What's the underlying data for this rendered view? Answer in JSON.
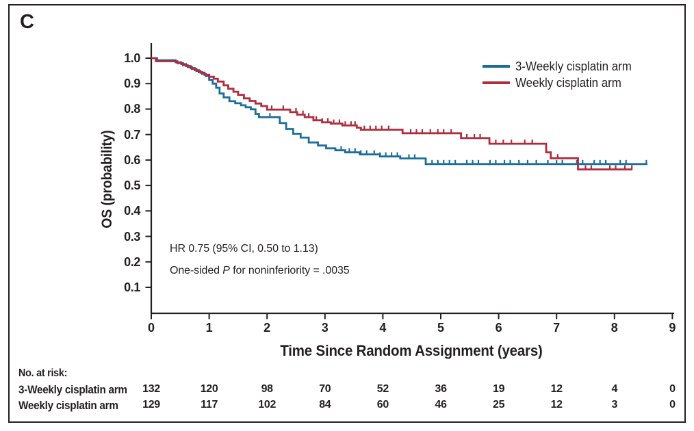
{
  "panel_label": "C",
  "colors": {
    "axis": "#231f20",
    "text": "#231f20",
    "blue": "#1a6e9b",
    "red": "#af2c3e"
  },
  "legend": [
    {
      "label": "3-Weekly cisplatin arm"
    },
    {
      "label": "Weekly cisplatin arm"
    }
  ],
  "annotation": {
    "line1": "HR 0.75 (95% CI, 0.50 to 1.13)",
    "line2_prefix": "One-sided ",
    "line2_italic": "P",
    "line2_suffix": " for noninferiority = .0035"
  },
  "chart_data": {
    "type": "line",
    "subtype": "kaplan-meier-step",
    "title": "",
    "xlabel": "Time Since Random Assignment (years)",
    "ylabel": "OS (probability)",
    "xlim": [
      0,
      9
    ],
    "ylim": [
      0,
      1.05
    ],
    "x_ticks": [
      0,
      1,
      2,
      3,
      4,
      5,
      6,
      7,
      8,
      9
    ],
    "y_ticks": [
      0.1,
      0.2,
      0.3,
      0.4,
      0.5,
      0.6,
      0.7,
      0.8,
      0.9,
      1.0
    ],
    "grid": false,
    "legend_position": "upper right",
    "series": [
      {
        "name": "3-Weekly cisplatin arm",
        "color": "#1a6e9b",
        "end_time": 8.57,
        "steps": [
          [
            0,
            1.0
          ],
          [
            0.1,
            0.992
          ],
          [
            0.42,
            0.984
          ],
          [
            0.52,
            0.977
          ],
          [
            0.6,
            0.969
          ],
          [
            0.68,
            0.961
          ],
          [
            0.75,
            0.953
          ],
          [
            0.82,
            0.945
          ],
          [
            0.88,
            0.938
          ],
          [
            0.94,
            0.93
          ],
          [
            1.0,
            0.915
          ],
          [
            1.06,
            0.9
          ],
          [
            1.12,
            0.884
          ],
          [
            1.18,
            0.861
          ],
          [
            1.25,
            0.846
          ],
          [
            1.35,
            0.831
          ],
          [
            1.45,
            0.823
          ],
          [
            1.55,
            0.815
          ],
          [
            1.63,
            0.807
          ],
          [
            1.72,
            0.799
          ],
          [
            1.8,
            0.781
          ],
          [
            1.86,
            0.768
          ],
          [
            2.22,
            0.745
          ],
          [
            2.33,
            0.722
          ],
          [
            2.45,
            0.703
          ],
          [
            2.58,
            0.688
          ],
          [
            2.72,
            0.669
          ],
          [
            2.88,
            0.657
          ],
          [
            3.02,
            0.646
          ],
          [
            3.18,
            0.638
          ],
          [
            3.35,
            0.63
          ],
          [
            3.6,
            0.622
          ],
          [
            3.95,
            0.614
          ],
          [
            4.3,
            0.606
          ],
          [
            4.74,
            0.584
          ]
        ],
        "censor_times": [
          1.25,
          2.05,
          3.28,
          3.42,
          3.52,
          3.62,
          3.72,
          3.85,
          3.95,
          4.05,
          4.15,
          4.25,
          4.45,
          4.55,
          4.85,
          4.95,
          5.05,
          5.15,
          5.25,
          5.45,
          5.55,
          5.65,
          5.85,
          5.95,
          6.1,
          6.2,
          6.35,
          6.5,
          6.65,
          6.85,
          7.0,
          7.1,
          7.35,
          7.45,
          7.65,
          7.75,
          7.85,
          8.1,
          8.2,
          8.55
        ]
      },
      {
        "name": "Weekly cisplatin arm",
        "color": "#af2c3e",
        "end_time": 8.31,
        "steps": [
          [
            0,
            1.0
          ],
          [
            0.08,
            0.988
          ],
          [
            0.45,
            0.98
          ],
          [
            0.55,
            0.972
          ],
          [
            0.63,
            0.965
          ],
          [
            0.7,
            0.958
          ],
          [
            0.78,
            0.95
          ],
          [
            0.85,
            0.943
          ],
          [
            0.92,
            0.935
          ],
          [
            1.0,
            0.927
          ],
          [
            1.08,
            0.919
          ],
          [
            1.15,
            0.908
          ],
          [
            1.25,
            0.893
          ],
          [
            1.33,
            0.88
          ],
          [
            1.42,
            0.868
          ],
          [
            1.5,
            0.856
          ],
          [
            1.6,
            0.842
          ],
          [
            1.7,
            0.832
          ],
          [
            1.8,
            0.822
          ],
          [
            1.9,
            0.812
          ],
          [
            2.0,
            0.798
          ],
          [
            2.4,
            0.788
          ],
          [
            2.52,
            0.778
          ],
          [
            2.65,
            0.768
          ],
          [
            2.8,
            0.756
          ],
          [
            2.95,
            0.748
          ],
          [
            3.1,
            0.743
          ],
          [
            3.3,
            0.736
          ],
          [
            3.55,
            0.727
          ],
          [
            3.62,
            0.719
          ],
          [
            4.34,
            0.705
          ],
          [
            5.35,
            0.686
          ],
          [
            5.84,
            0.664
          ],
          [
            6.82,
            0.63
          ],
          [
            6.9,
            0.607
          ],
          [
            7.37,
            0.563
          ]
        ],
        "censor_times": [
          2.08,
          2.28,
          2.5,
          2.62,
          2.72,
          2.85,
          2.95,
          3.05,
          3.15,
          3.25,
          3.35,
          3.45,
          3.52,
          3.68,
          3.78,
          3.88,
          3.98,
          4.1,
          4.48,
          4.58,
          4.68,
          4.82,
          4.95,
          5.05,
          5.18,
          5.45,
          5.58,
          5.68,
          5.95,
          6.08,
          6.22,
          6.45,
          6.58,
          7.02,
          7.5,
          7.6,
          7.92,
          8.02,
          8.18,
          8.3
        ]
      }
    ],
    "annotations": [
      "HR 0.75 (95% CI, 0.50 to 1.13)",
      "One-sided P for noninferiority = .0035"
    ]
  },
  "risk_table": {
    "header": "No. at risk:",
    "time_points": [
      0,
      1,
      2,
      3,
      4,
      5,
      6,
      7,
      8,
      9
    ],
    "rows": [
      {
        "label": "3-Weekly cisplatin arm",
        "values": [
          132,
          120,
          98,
          70,
          52,
          36,
          19,
          12,
          4,
          0
        ]
      },
      {
        "label": "Weekly cisplatin arm",
        "values": [
          129,
          117,
          102,
          84,
          60,
          46,
          25,
          12,
          3,
          0
        ]
      }
    ]
  }
}
